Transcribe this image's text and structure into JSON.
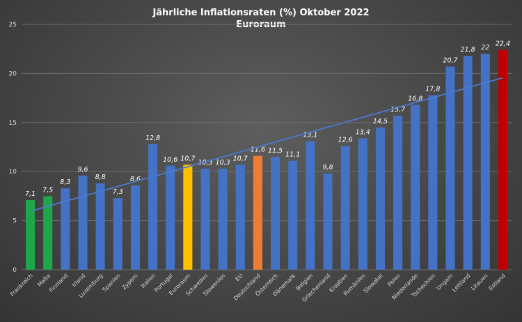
{
  "chart_data": {
    "type": "bar",
    "title": "Jährliche Inflationsraten (%) Oktober 2022",
    "subtitle": "Euroraum",
    "categories": [
      "Frankreich",
      "Malta",
      "Finnland",
      "Irland",
      "Luxemburg",
      "Spanien",
      "Zypern",
      "Italien",
      "Portugal",
      "Euroraum",
      "Schweden",
      "Slowenien",
      "EU",
      "Deutschland",
      "Österreich",
      "Dänemark",
      "Belgien",
      "Griechenland",
      "Kroatien",
      "Rumänien",
      "Slowakei",
      "Polen",
      "Niederlande",
      "Tschechien",
      "Ungarn",
      "Lettland",
      "Litauen",
      "Estland"
    ],
    "values": [
      7.1,
      7.5,
      8.3,
      9.6,
      8.8,
      7.3,
      8.6,
      12.8,
      10.6,
      10.7,
      10.3,
      10.3,
      10.7,
      11.6,
      11.5,
      11.1,
      13.1,
      9.8,
      12.6,
      13.4,
      14.5,
      15.7,
      16.8,
      17.8,
      20.7,
      21.8,
      22,
      22.4
    ],
    "value_labels": [
      "7,1",
      "7,5",
      "8,3",
      "9,6",
      "8,8",
      "7,3",
      "8,6",
      "12,8",
      "10,6",
      "10,7",
      "10,3",
      "10,3",
      "10,7",
      "11,6",
      "11,5",
      "11,1",
      "13,1",
      "9,8",
      "12,6",
      "13,4",
      "14,5",
      "15,7",
      "16,8",
      "17,8",
      "20,7",
      "21,8",
      "22",
      "22,4"
    ],
    "bar_colors": [
      "#1fa64a",
      "#1fa64a",
      "#4472c4",
      "#4472c4",
      "#4472c4",
      "#4472c4",
      "#4472c4",
      "#4472c4",
      "#4472c4",
      "#ffc000",
      "#4472c4",
      "#4472c4",
      "#4472c4",
      "#ed7d31",
      "#4472c4",
      "#4472c4",
      "#4472c4",
      "#4472c4",
      "#4472c4",
      "#4472c4",
      "#4472c4",
      "#4472c4",
      "#4472c4",
      "#4472c4",
      "#4472c4",
      "#4472c4",
      "#4472c4",
      "#c00000"
    ],
    "ylim": [
      0,
      25
    ],
    "yticks": [
      0,
      5,
      10,
      15,
      20,
      25
    ],
    "trendline": {
      "type": "linear",
      "color": "#4a7bd0"
    },
    "grid": true,
    "legend": "none"
  }
}
